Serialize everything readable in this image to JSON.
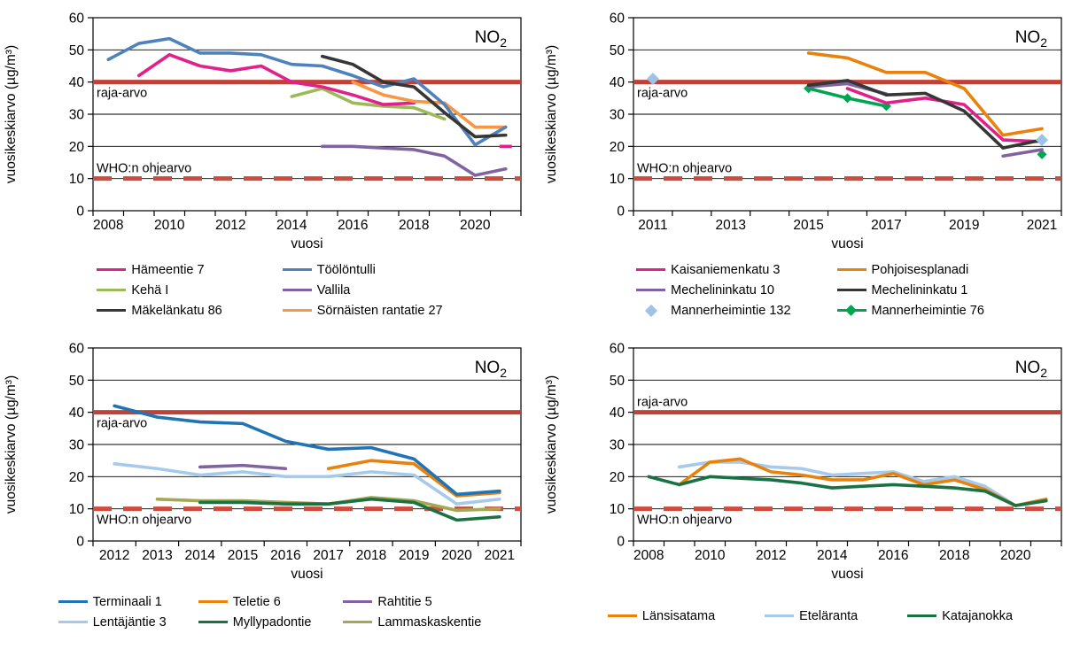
{
  "page_background": "#ffffff",
  "chart_data": [
    {
      "type": "line",
      "id": "top-left",
      "gas": {
        "main": "NO",
        "sub": "2"
      },
      "ylabel": "vuosikeskiarvo (µg/m³)",
      "xlabel": "vuosi",
      "ylim": [
        0,
        60
      ],
      "y_tick_labels": [
        "0",
        "10",
        "20",
        "30",
        "40",
        "50",
        "60"
      ],
      "grid": true,
      "years": [
        2008,
        2009,
        2010,
        2011,
        2012,
        2013,
        2014,
        2015,
        2016,
        2017,
        2018,
        2019,
        2020,
        2021
      ],
      "x_tick_labels": [
        "2008",
        "2010",
        "2012",
        "2014",
        "2016",
        "2018",
        "2020"
      ],
      "limit_lines": [
        {
          "label": "raja-arvo",
          "value": 40,
          "style": "solid",
          "color": "#bf4238",
          "label_pos": "below"
        },
        {
          "label": "WHO:n ohjearvo",
          "value": 10,
          "style": "dashed",
          "color": "#ce4b3e",
          "label_pos": "above"
        }
      ],
      "legend_columns": 2,
      "draw_order": [
        2,
        0,
        3,
        5,
        1,
        4
      ],
      "series": [
        {
          "name": "Hämeentie 7",
          "color": "#e0218a",
          "marker": "none",
          "values": [
            null,
            42,
            48.5,
            45,
            43.5,
            45,
            40,
            38.5,
            36,
            33,
            33.5,
            null,
            null,
            20
          ]
        },
        {
          "name": "Töölöntulli",
          "color": "#4f81bd",
          "marker": "none",
          "values": [
            47,
            52,
            53.5,
            49,
            49,
            48.5,
            45.5,
            45,
            42,
            38.5,
            41,
            33,
            20.5,
            26
          ]
        },
        {
          "name": "Kehä I",
          "color": "#9bbb59",
          "marker": "none",
          "values": [
            null,
            null,
            null,
            null,
            null,
            null,
            35.5,
            38,
            33.5,
            32.5,
            32,
            28.5,
            null,
            null
          ]
        },
        {
          "name": "Vallila",
          "color": "#8064a2",
          "marker": "none",
          "values": [
            null,
            null,
            null,
            null,
            null,
            null,
            null,
            20,
            20,
            19.5,
            19,
            17,
            11,
            13
          ]
        },
        {
          "name": "Mäkelänkatu 86",
          "color": "#363636",
          "marker": "none",
          "values": [
            null,
            null,
            null,
            null,
            null,
            null,
            null,
            48,
            45.5,
            40,
            38.5,
            30.5,
            23,
            23.5
          ]
        },
        {
          "name": "Sörnäisten rantatie 27",
          "color": "#f79646",
          "marker": "none",
          "values": [
            null,
            null,
            null,
            null,
            null,
            null,
            null,
            null,
            40,
            36,
            34,
            33.5,
            26,
            26
          ]
        }
      ]
    },
    {
      "type": "line",
      "id": "top-right",
      "gas": {
        "main": "NO",
        "sub": "2"
      },
      "ylabel": "vuosikeskiarvo (µg/m³)",
      "xlabel": "vuosi",
      "ylim": [
        0,
        60
      ],
      "y_tick_labels": [
        "0",
        "10",
        "20",
        "30",
        "40",
        "50",
        "60"
      ],
      "grid": true,
      "years": [
        2011,
        2012,
        2013,
        2014,
        2015,
        2016,
        2017,
        2018,
        2019,
        2020,
        2021
      ],
      "x_tick_labels": [
        "2011",
        "2013",
        "2015",
        "2017",
        "2019",
        "2021"
      ],
      "limit_lines": [
        {
          "label": "raja-arvo",
          "value": 40,
          "style": "solid",
          "color": "#bf4238",
          "label_pos": "below"
        },
        {
          "label": "WHO:n ohjearvo",
          "value": 10,
          "style": "dashed",
          "color": "#ce4b3e",
          "label_pos": "above"
        }
      ],
      "legend_columns": 2,
      "draw_order": [
        5,
        0,
        2,
        3,
        1,
        4
      ],
      "series": [
        {
          "name": "Kaisaniemenkatu 3",
          "color": "#e0218a",
          "marker": "none",
          "values": [
            null,
            null,
            null,
            null,
            null,
            38,
            33.5,
            35,
            33,
            22,
            21.5
          ]
        },
        {
          "name": "Pohjoisesplanadi",
          "color": "#e8820c",
          "marker": "none",
          "values": [
            null,
            null,
            null,
            null,
            49,
            47.5,
            43,
            43,
            38,
            23.5,
            25.5
          ]
        },
        {
          "name": "Mechelininkatu 10",
          "color": "#8064a2",
          "marker": "none",
          "values": [
            null,
            null,
            null,
            null,
            38.5,
            39.5,
            36.3,
            null,
            null,
            17,
            19
          ]
        },
        {
          "name": "Mechelininkatu 1",
          "color": "#363636",
          "marker": "none",
          "values": [
            null,
            null,
            null,
            null,
            39,
            40.5,
            36,
            36.5,
            31,
            19.5,
            22
          ]
        },
        {
          "name": "Mannerheimintie 132",
          "color": "#9dc3e6",
          "marker": "diamond",
          "marker_size": 7,
          "line": false,
          "values": [
            41,
            null,
            null,
            null,
            null,
            null,
            null,
            null,
            null,
            null,
            22
          ]
        },
        {
          "name": "Mannerheimintie 76",
          "color": "#00a551",
          "marker": "diamond",
          "marker_size": 5.5,
          "values": [
            null,
            null,
            null,
            null,
            38,
            35,
            32.5,
            null,
            null,
            null,
            17.5
          ]
        }
      ]
    },
    {
      "type": "line",
      "id": "bottom-left",
      "gas": {
        "main": "NO",
        "sub": "2"
      },
      "ylabel": "vuosikeskiarvo (µg/m³)",
      "xlabel": "vuosi",
      "ylim": [
        0,
        60
      ],
      "y_tick_labels": [
        "0",
        "10",
        "20",
        "30",
        "40",
        "50",
        "60"
      ],
      "grid": true,
      "years": [
        2012,
        2013,
        2014,
        2015,
        2016,
        2017,
        2018,
        2019,
        2020,
        2021
      ],
      "x_tick_labels": [
        "2012",
        "2013",
        "2014",
        "2015",
        "2016",
        "2017",
        "2018",
        "2019",
        "2020",
        "2021"
      ],
      "limit_lines": [
        {
          "label": "raja-arvo",
          "value": 40,
          "style": "solid",
          "color": "#bf4238",
          "label_pos": "below"
        },
        {
          "label": "WHO:n ohjearvo",
          "value": 10,
          "style": "dashed",
          "color": "#ce4b3e",
          "label_pos": "below"
        }
      ],
      "legend_columns": 3,
      "draw_order": [
        3,
        5,
        4,
        2,
        1,
        0
      ],
      "series": [
        {
          "name": "Terminaali 1",
          "color": "#2173b4",
          "marker": "none",
          "values": [
            42,
            38.5,
            37,
            36.5,
            31,
            28.5,
            29,
            25.5,
            14.5,
            15.5
          ]
        },
        {
          "name": "Teletie 6",
          "color": "#e8820c",
          "marker": "none",
          "values": [
            null,
            null,
            null,
            null,
            null,
            22.5,
            25,
            24,
            14,
            15
          ]
        },
        {
          "name": "Rahtitie 5",
          "color": "#8064a2",
          "marker": "none",
          "values": [
            null,
            null,
            23,
            23.5,
            22.5,
            null,
            null,
            null,
            null,
            null
          ]
        },
        {
          "name": "Lentäjäntie 3",
          "color": "#a6caec",
          "marker": "none",
          "values": [
            24,
            22.5,
            20.5,
            21.5,
            20,
            20,
            21.5,
            20.5,
            11.5,
            13
          ]
        },
        {
          "name": "Myllypadontie",
          "color": "#1a7242",
          "marker": "none",
          "values": [
            null,
            null,
            12,
            12,
            11.5,
            11.5,
            13,
            12,
            6.5,
            7.5
          ]
        },
        {
          "name": "Lammaskaskentie",
          "color": "#a3a851",
          "marker": "none",
          "values": [
            null,
            13,
            12.5,
            12.5,
            12,
            11.5,
            13.5,
            12.5,
            9.5,
            10
          ]
        }
      ]
    },
    {
      "type": "line",
      "id": "bottom-right",
      "gas": {
        "main": "NO",
        "sub": "2"
      },
      "ylabel": "vuosikeskiarvo (µg/m³)",
      "xlabel": "vuosi",
      "ylim": [
        0,
        60
      ],
      "y_tick_labels": [
        "0",
        "10",
        "20",
        "30",
        "40",
        "50",
        "60"
      ],
      "grid": true,
      "years": [
        2008,
        2009,
        2010,
        2011,
        2012,
        2013,
        2014,
        2015,
        2016,
        2017,
        2018,
        2019,
        2020,
        2021
      ],
      "x_tick_labels": [
        "2008",
        "2010",
        "2012",
        "2014",
        "2016",
        "2018",
        "2020"
      ],
      "limit_lines": [
        {
          "label": "raja-arvo",
          "value": 40,
          "style": "solid",
          "color": "#bf4238",
          "label_pos": "above"
        },
        {
          "label": "WHO:n ohjearvo",
          "value": 10,
          "style": "dashed",
          "color": "#ce4b3e",
          "label_pos": "below"
        }
      ],
      "legend_columns": 3,
      "draw_order": [
        1,
        0,
        2
      ],
      "series": [
        {
          "name": "Länsisatama",
          "color": "#e8820c",
          "marker": "none",
          "values": [
            null,
            17.5,
            24.5,
            25.5,
            21.5,
            20.5,
            19,
            19,
            21,
            17.5,
            19,
            16,
            11,
            13
          ]
        },
        {
          "name": "Eteläranta",
          "color": "#a6caec",
          "marker": "none",
          "values": [
            null,
            23,
            24.5,
            24.5,
            23,
            22.5,
            20.5,
            21,
            21.5,
            18.5,
            20,
            17,
            11,
            12.5
          ]
        },
        {
          "name": "Katajanokka",
          "color": "#1a7242",
          "marker": "none",
          "values": [
            20,
            17.5,
            20,
            19.5,
            19,
            18,
            16.5,
            17,
            17.5,
            17,
            16.5,
            15.5,
            11,
            12.5
          ]
        }
      ]
    }
  ]
}
